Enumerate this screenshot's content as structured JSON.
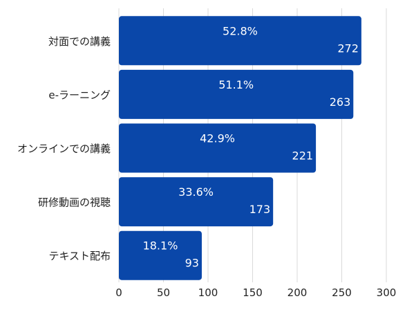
{
  "chart_data": {
    "type": "bar",
    "orientation": "horizontal",
    "categories": [
      "対面での講義",
      "e-ラーニング",
      "オンラインでの講義",
      "研修動画の視聴",
      "テキスト配布"
    ],
    "values": [
      272,
      263,
      221,
      173,
      93
    ],
    "percent_labels": [
      "52.8%",
      "51.1%",
      "42.9%",
      "33.6%",
      "18.1%"
    ],
    "xlim": [
      0,
      300
    ],
    "x_ticks": [
      "0",
      "50",
      "100",
      "150",
      "200",
      "250",
      "300"
    ],
    "grid": "vertical",
    "legend": "none",
    "title": "",
    "xlabel": "",
    "ylabel": ""
  },
  "colors": {
    "bar": "#0a47a9",
    "label_text": "#ffffff",
    "axis_text": "#222222",
    "grid": "#d9d9d9"
  }
}
